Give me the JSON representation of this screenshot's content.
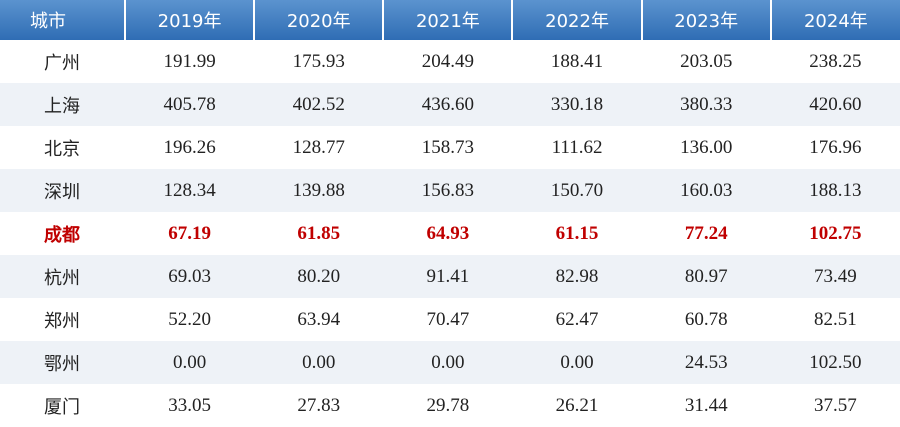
{
  "table": {
    "header": [
      "城市",
      "2019年",
      "2020年",
      "2021年",
      "2022年",
      "2023年",
      "2024年"
    ],
    "rows": [
      [
        "广州",
        "191.99",
        "175.93",
        "204.49",
        "188.41",
        "203.05",
        "238.25"
      ],
      [
        "上海",
        "405.78",
        "402.52",
        "436.60",
        "330.18",
        "380.33",
        "420.60"
      ],
      [
        "北京",
        "196.26",
        "128.77",
        "158.73",
        "111.62",
        "136.00",
        "176.96"
      ],
      [
        "深圳",
        "128.34",
        "139.88",
        "156.83",
        "150.70",
        "160.03",
        "188.13"
      ],
      [
        "成都",
        "67.19",
        "61.85",
        "64.93",
        "61.15",
        "77.24",
        "102.75"
      ],
      [
        "杭州",
        "69.03",
        "80.20",
        "91.41",
        "82.98",
        "80.97",
        "73.49"
      ],
      [
        "郑州",
        "52.20",
        "63.94",
        "70.47",
        "62.47",
        "60.78",
        "82.51"
      ],
      [
        "鄂州",
        "0.00",
        "0.00",
        "0.00",
        "0.00",
        "24.53",
        "102.50"
      ],
      [
        "厦门",
        "33.05",
        "27.83",
        "29.78",
        "26.21",
        "31.44",
        "37.57"
      ]
    ]
  }
}
